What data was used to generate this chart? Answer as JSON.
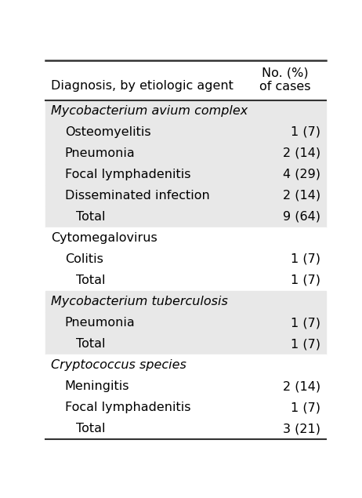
{
  "header_col1": "Diagnosis, by etiologic agent",
  "header_col2_line1": "No. (%)",
  "header_col2_line2": "of cases",
  "rows": [
    {
      "label": "Mycobacterium avium complex",
      "value": "",
      "indent": 0,
      "italic": true,
      "bg": "light"
    },
    {
      "label": "Osteomyelitis",
      "value": "1 (7)",
      "indent": 1,
      "italic": false,
      "bg": "light"
    },
    {
      "label": "Pneumonia",
      "value": "2 (14)",
      "indent": 1,
      "italic": false,
      "bg": "light"
    },
    {
      "label": "Focal lymphadenitis",
      "value": "4 (29)",
      "indent": 1,
      "italic": false,
      "bg": "light"
    },
    {
      "label": "Disseminated infection",
      "value": "2 (14)",
      "indent": 1,
      "italic": false,
      "bg": "light"
    },
    {
      "label": "Total",
      "value": "9 (64)",
      "indent": 2,
      "italic": false,
      "bg": "light"
    },
    {
      "label": "Cytomegalovirus",
      "value": "",
      "indent": 0,
      "italic": false,
      "bg": "white"
    },
    {
      "label": "Colitis",
      "value": "1 (7)",
      "indent": 1,
      "italic": false,
      "bg": "white"
    },
    {
      "label": "Total",
      "value": "1 (7)",
      "indent": 2,
      "italic": false,
      "bg": "white"
    },
    {
      "label": "Mycobacterium tuberculosis",
      "value": "",
      "indent": 0,
      "italic": true,
      "bg": "light"
    },
    {
      "label": "Pneumonia",
      "value": "1 (7)",
      "indent": 1,
      "italic": false,
      "bg": "light"
    },
    {
      "label": "Total",
      "value": "1 (7)",
      "indent": 2,
      "italic": false,
      "bg": "light"
    },
    {
      "label": "Cryptococcus species",
      "value": "",
      "indent": 0,
      "italic": true,
      "bg": "white"
    },
    {
      "label": "Meningitis",
      "value": "2 (14)",
      "indent": 1,
      "italic": false,
      "bg": "white"
    },
    {
      "label": "Focal lymphadenitis",
      "value": "1 (7)",
      "indent": 1,
      "italic": false,
      "bg": "white"
    },
    {
      "label": "Total",
      "value": "3 (21)",
      "indent": 2,
      "italic": false,
      "bg": "white"
    }
  ],
  "bg_light": "#E8E8E8",
  "bg_white": "#FFFFFF",
  "text_color": "#000000",
  "font_size": 11.5,
  "header_font_size": 11.5
}
